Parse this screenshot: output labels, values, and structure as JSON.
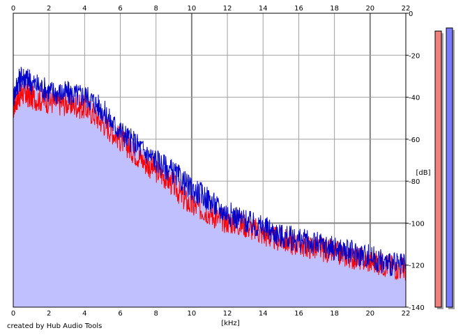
{
  "chart_data": {
    "type": "area",
    "xlabel": "[kHz]",
    "ylabel": "[dB]",
    "xlim": [
      0,
      22
    ],
    "ylim": [
      -140,
      0
    ],
    "x_ticks": [
      "0",
      "2",
      "4",
      "6",
      "8",
      "10",
      "12",
      "14",
      "16",
      "18",
      "20",
      "22"
    ],
    "y_ticks": [
      "0",
      "-20",
      "-40",
      "-60",
      "-80",
      "-100",
      "-120",
      "-140"
    ],
    "grid": true,
    "series": [
      {
        "channel": "left",
        "color": "#ff0000",
        "x": [
          0,
          0.25,
          0.5,
          0.75,
          1,
          1.5,
          2,
          2.5,
          3,
          3.5,
          4,
          4.5,
          5,
          5.5,
          6,
          6.5,
          7,
          7.5,
          8,
          8.5,
          9,
          9.5,
          10,
          10.5,
          11,
          11.5,
          12,
          12.5,
          13,
          13.5,
          14,
          14.5,
          15,
          15.5,
          16,
          16.5,
          17,
          17.5,
          18,
          18.5,
          19,
          19.5,
          20,
          20.5,
          21,
          21.5,
          22
        ],
        "values": [
          -45,
          -40,
          -38,
          -39,
          -40,
          -41,
          -42,
          -43,
          -43,
          -44,
          -45,
          -48,
          -52,
          -56,
          -60,
          -64,
          -68,
          -72,
          -75,
          -78,
          -82,
          -88,
          -92,
          -93,
          -95,
          -98,
          -99,
          -100,
          -101,
          -103,
          -105,
          -107,
          -108,
          -109,
          -110,
          -111,
          -112,
          -113,
          -114,
          -115,
          -116,
          -117,
          -118,
          -119,
          -120,
          -121,
          -122
        ]
      },
      {
        "channel": "right",
        "color": "#0000cc",
        "x": [
          0,
          0.25,
          0.5,
          0.75,
          1,
          1.5,
          2,
          2.5,
          3,
          3.5,
          4,
          4.5,
          5,
          5.5,
          6,
          6.5,
          7,
          7.5,
          8,
          8.5,
          9,
          9.5,
          10,
          10.5,
          11,
          11.5,
          12,
          12.5,
          13,
          13.5,
          14,
          14.5,
          15,
          15.5,
          16,
          16.5,
          17,
          17.5,
          18,
          18.5,
          19,
          19.5,
          20,
          20.5,
          21,
          21.5,
          22
        ],
        "values": [
          -40,
          -33,
          -30,
          -31,
          -33,
          -35,
          -37,
          -38,
          -38,
          -39,
          -39,
          -42,
          -46,
          -52,
          -56,
          -60,
          -63,
          -67,
          -70,
          -73,
          -76,
          -80,
          -84,
          -86,
          -89,
          -93,
          -95,
          -97,
          -99,
          -101,
          -102,
          -104,
          -106,
          -107,
          -108,
          -109,
          -110,
          -111,
          -112,
          -113,
          -114,
          -115,
          -116,
          -118,
          -119,
          -120,
          -121
        ]
      }
    ],
    "meters": [
      {
        "channel": "left",
        "color": "#f08080",
        "level_db": -8.5
      },
      {
        "channel": "right",
        "color": "#7b7bff",
        "level_db": -7
      }
    ],
    "colors": {
      "fill": "#c0c0ff",
      "grid": "#a0a0a0",
      "grid_major": "#808080"
    }
  },
  "footer": {
    "credit": "created by Hub Audio Tools"
  }
}
